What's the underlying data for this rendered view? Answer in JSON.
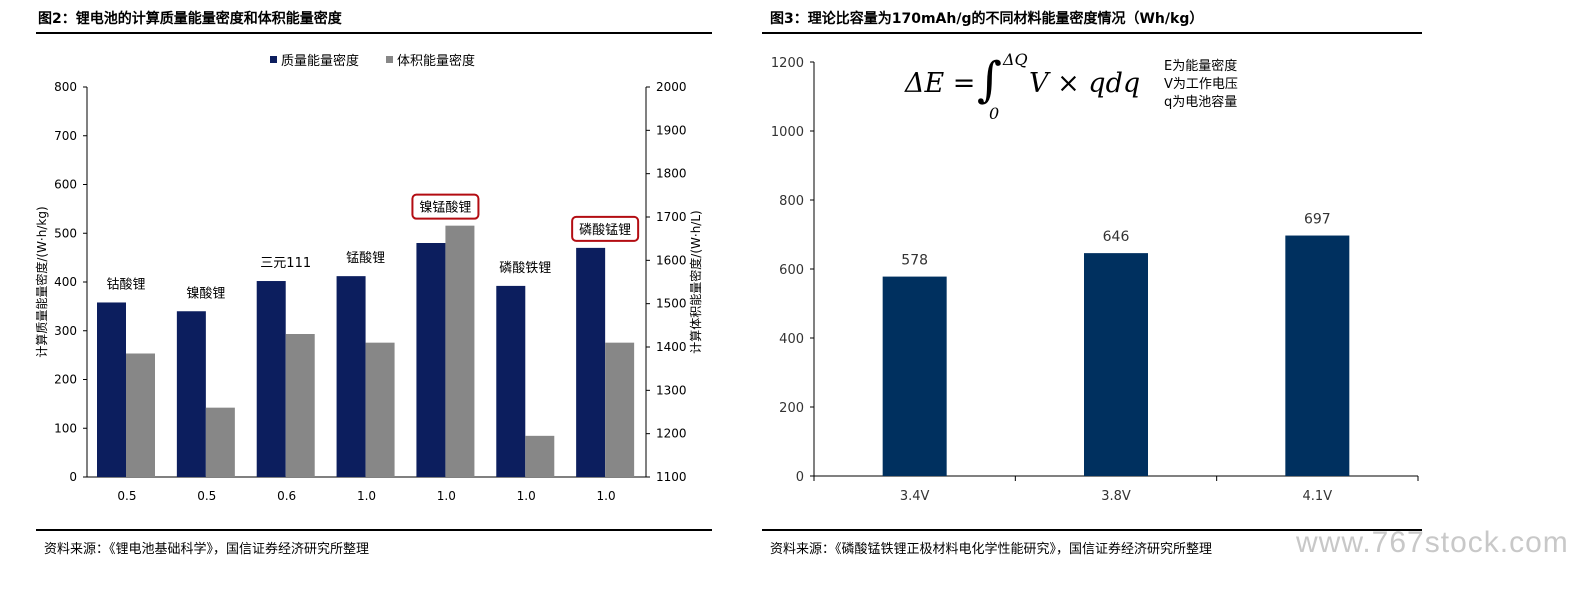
{
  "left_panel": {
    "title": "图2：锂电池的计算质量能量密度和体积能量密度",
    "source": "资料来源：《锂电池基础科学》，国信证券经济研究所整理"
  },
  "right_panel": {
    "title": "图3：理论比容量为170mAh/g的不同材料能量密度情况（Wh/kg）",
    "source": "资料来源：《磷酸锰铁锂正极材料电化学性能研究》，国信证券经济研究所整理",
    "formula": {
      "lhs": "ΔE =",
      "integral": "∫",
      "upper": "ΔQ",
      "lower": "0",
      "rhs": "V × qdq"
    },
    "notes": [
      "E为能量密度",
      "V为工作电压",
      "q为电池容量"
    ]
  },
  "watermark": "www.767stock.com",
  "colors": {
    "navy": "#0c1e5e",
    "gray": "#878787",
    "blue": "#00305f",
    "highlight_border": "#b30c12"
  },
  "chart_data": [
    {
      "type": "bar",
      "categories": [
        "0.5",
        "0.5",
        "0.6",
        "1.0",
        "1.0",
        "1.0",
        "1.0"
      ],
      "category_labels": [
        "钴酸锂",
        "镍酸锂",
        "三元111",
        "锰酸锂",
        "镍锰酸锂",
        "磷酸铁锂",
        "磷酸锰锂"
      ],
      "highlighted_labels": [
        4,
        6
      ],
      "series": [
        {
          "name": "质量能量密度",
          "axis": "left",
          "values": [
            358,
            340,
            402,
            412,
            480,
            392,
            470
          ]
        },
        {
          "name": "体积能量密度",
          "axis": "right",
          "values": [
            1385,
            1260,
            1430,
            1410,
            1680,
            1195,
            1410
          ]
        }
      ],
      "ylabel": "计算质量能量密度/(W·h/kg)",
      "ylabel_right": "计算体积能量密度/(W·h/L)",
      "ylim": [
        0,
        800
      ],
      "ylim_right": [
        1100,
        2000
      ],
      "yticks": [
        "0",
        "100",
        "200",
        "300",
        "400",
        "500",
        "600",
        "700",
        "800"
      ],
      "yticks_right": [
        "1100",
        "1200",
        "1300",
        "1400",
        "1500",
        "1600",
        "1700",
        "1800",
        "1900",
        "2000"
      ],
      "legend_position": "top-center",
      "grid": false
    },
    {
      "type": "bar",
      "categories": [
        "3.4V",
        "3.8V",
        "4.1V"
      ],
      "values": [
        578,
        646,
        697
      ],
      "data_labels": [
        "578",
        "646",
        "697"
      ],
      "ylim": [
        0,
        1200
      ],
      "yticks": [
        "0",
        "200",
        "400",
        "600",
        "800",
        "1000",
        "1200"
      ],
      "grid": false,
      "legend": false
    }
  ]
}
